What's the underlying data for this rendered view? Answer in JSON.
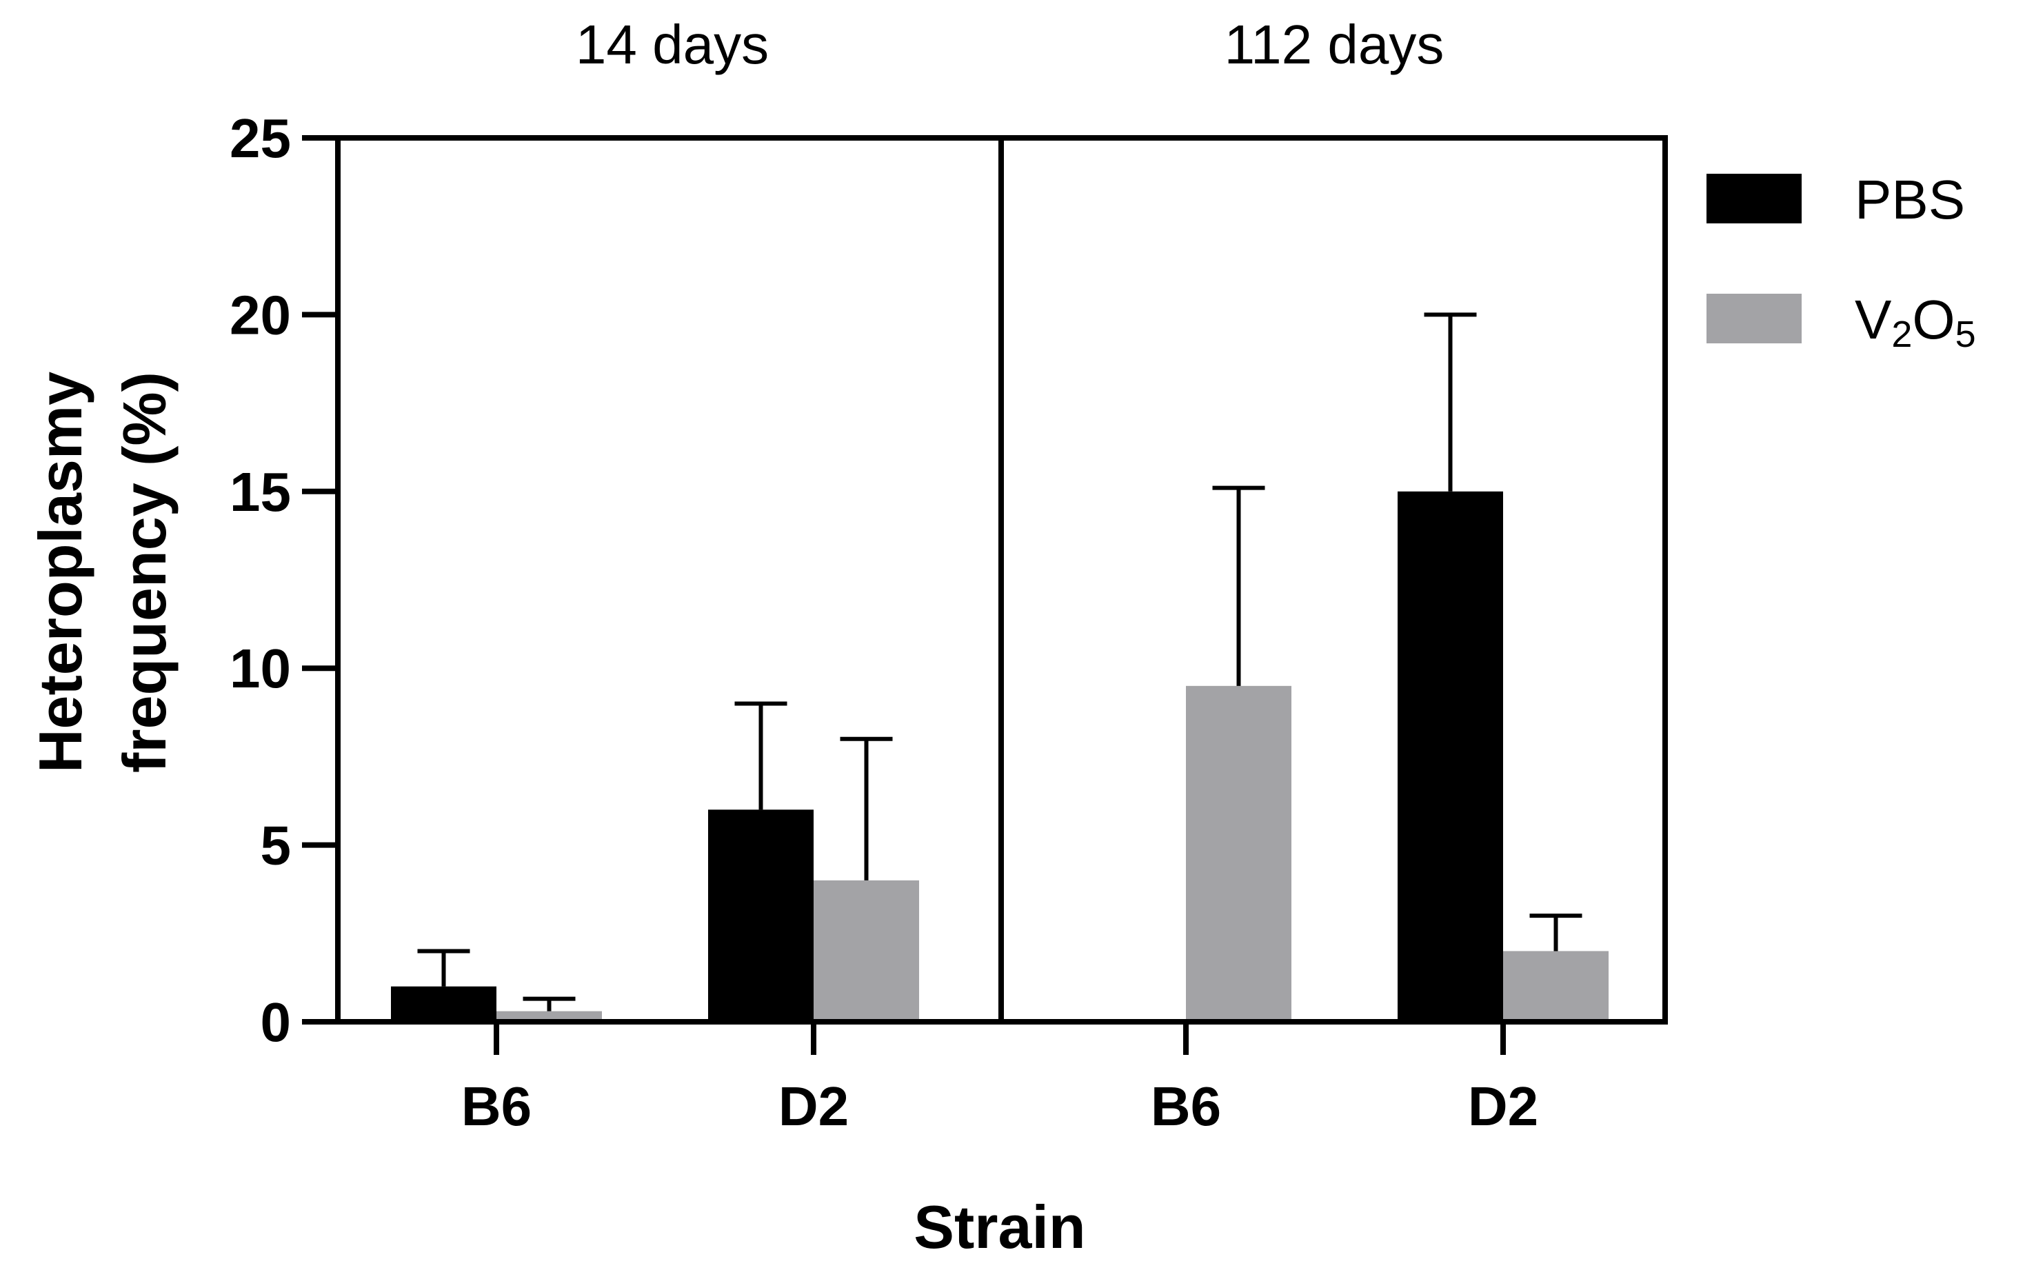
{
  "chart_data": {
    "type": "bar",
    "ylabel_lines": [
      "Heteroplasmy",
      "frequency (%)"
    ],
    "xlabel": "Strain",
    "ylim": [
      0,
      25
    ],
    "yticks": [
      "0",
      "5",
      "10",
      "15",
      "20",
      "25"
    ],
    "legend_position": "right",
    "grid": false,
    "error_bars": "upper only",
    "series": [
      {
        "key": "pbs",
        "label_parts": [
          "PBS"
        ],
        "color": "#000000"
      },
      {
        "key": "v2o5",
        "label_parts": [
          "V",
          "2",
          "O",
          "5"
        ],
        "color": "#a3a3a6"
      }
    ],
    "panels": [
      {
        "title": "14 days",
        "categories": [
          "B6",
          "D2"
        ],
        "pbs": {
          "values": [
            1.0,
            6.0
          ],
          "error_upper": [
            2.0,
            9.0
          ]
        },
        "v2o5": {
          "values": [
            0.3,
            4.0
          ],
          "error_upper": [
            0.65,
            8.0
          ]
        }
      },
      {
        "title": "112 days",
        "categories": [
          "B6",
          "D2"
        ],
        "pbs": {
          "values": [
            0.0,
            15.0
          ],
          "error_upper": [
            null,
            20.0
          ]
        },
        "v2o5": {
          "values": [
            9.5,
            2.0
          ],
          "error_upper": [
            15.1,
            3.0
          ]
        }
      }
    ]
  }
}
